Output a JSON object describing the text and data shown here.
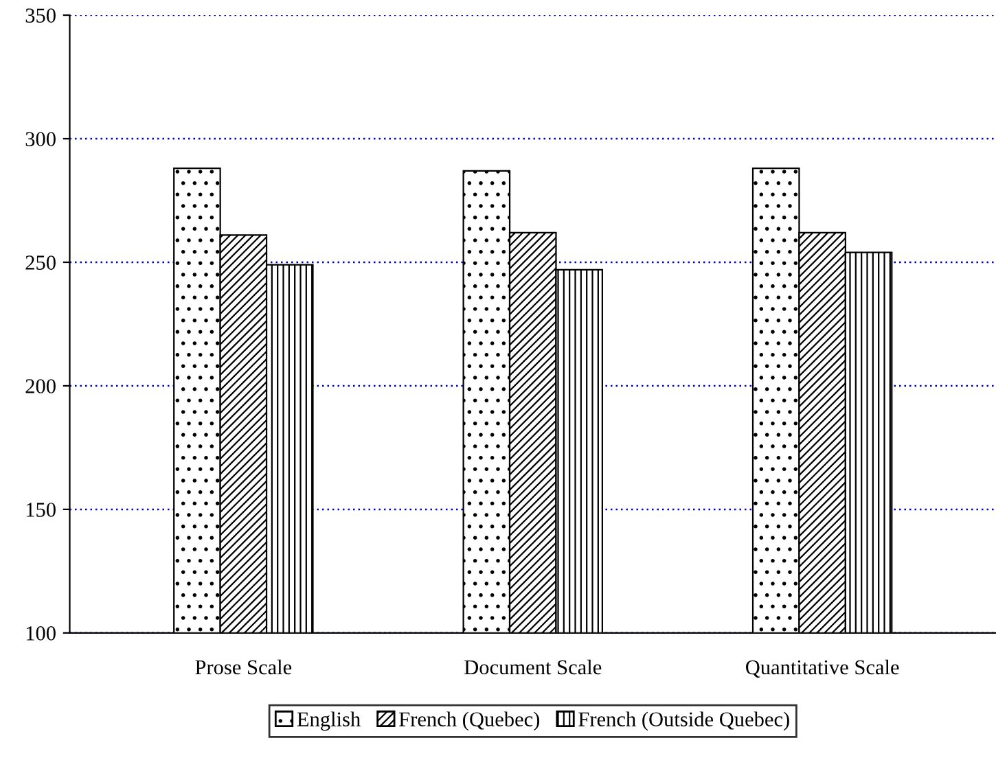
{
  "chart_data": {
    "type": "bar",
    "categories": [
      "Prose Scale",
      "Document Scale",
      "Quantitative Scale"
    ],
    "series": [
      {
        "name": "English",
        "color": "#000000",
        "values": [
          288,
          287,
          288
        ]
      },
      {
        "name": "French (Quebec)",
        "color": "#000000",
        "values": [
          261,
          262,
          262
        ]
      },
      {
        "name": "French (Outside Quebec)",
        "color": "#000000",
        "values": [
          249,
          247,
          254
        ]
      }
    ],
    "ylim": [
      100,
      350
    ],
    "yticks": [
      100,
      150,
      200,
      250,
      300,
      350
    ],
    "grid": "y",
    "legend": "bottom"
  }
}
